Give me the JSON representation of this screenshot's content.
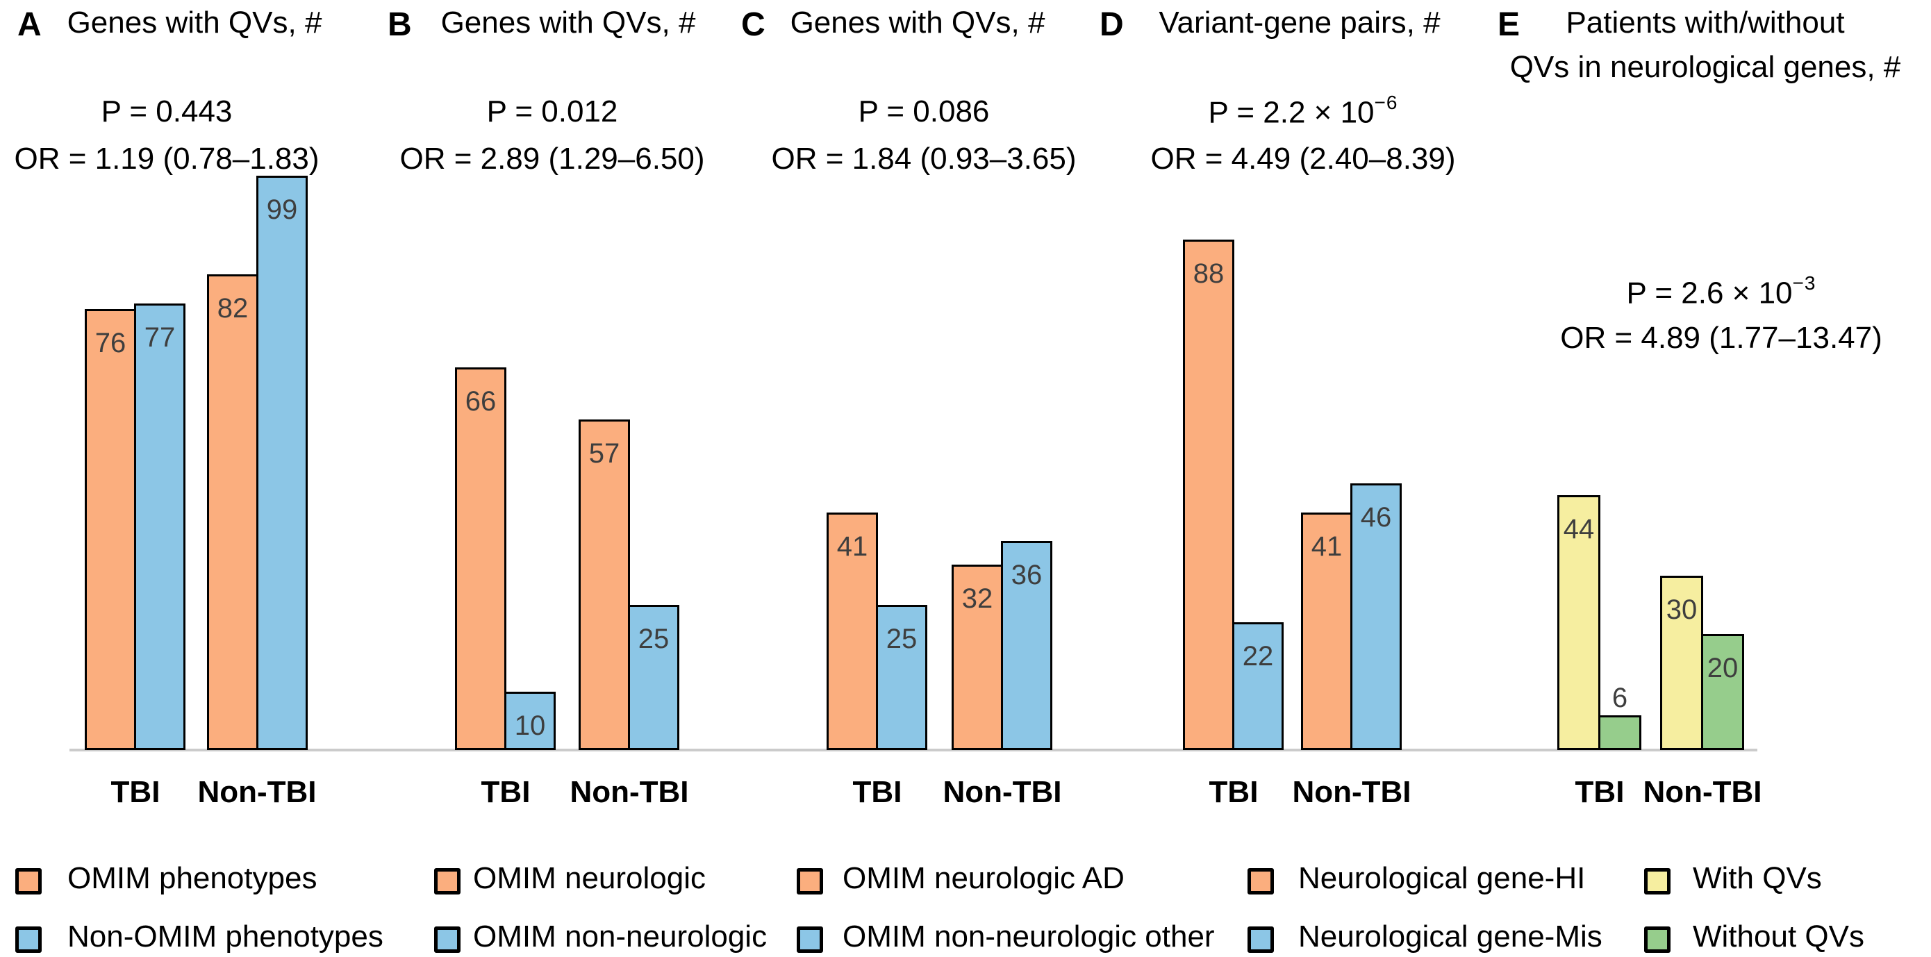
{
  "figure": {
    "background": "#FFFFFF",
    "baseline_color": "#CBCBCB",
    "bar_border_color": "#000000",
    "value_label_color": "#3E3E3E"
  },
  "colors": {
    "orange": "#FBAE7E",
    "blue": "#8CC6E6",
    "yellow": "#F6EEA0",
    "green": "#96CD8C"
  },
  "chart_data": {
    "type": "bar",
    "categories": [
      "TBI",
      "Non-TBI"
    ],
    "grid": "off",
    "value_axis_shown": false,
    "legend_position": "bottom",
    "panels": [
      {
        "label": "A",
        "title_lines": [
          "Genes with QVs, #"
        ],
        "p_base": "P = 0.443",
        "p_exp": "",
        "or_text": "OR = 1.19 (0.78–1.83)",
        "series": [
          {
            "name": "OMIM phenotypes",
            "color_key": "orange",
            "values": [
              76,
              82
            ]
          },
          {
            "name": "Non-OMIM phenotypes",
            "color_key": "blue",
            "values": [
              77,
              99
            ]
          }
        ]
      },
      {
        "label": "B",
        "title_lines": [
          "Genes with QVs, #"
        ],
        "p_base": "P = 0.012",
        "p_exp": "",
        "or_text": "OR = 2.89 (1.29–6.50)",
        "series": [
          {
            "name": "OMIM neurologic",
            "color_key": "orange",
            "values": [
              66,
              57
            ]
          },
          {
            "name": "OMIM non-neurologic",
            "color_key": "blue",
            "values": [
              10,
              25
            ]
          }
        ]
      },
      {
        "label": "C",
        "title_lines": [
          "Genes with QVs, #"
        ],
        "p_base": "P = 0.086",
        "p_exp": "",
        "or_text": "OR = 1.84 (0.93–3.65)",
        "series": [
          {
            "name": "OMIM neurologic AD",
            "color_key": "orange",
            "values": [
              41,
              32
            ]
          },
          {
            "name": "OMIM non-neurologic other",
            "color_key": "blue",
            "values": [
              25,
              36
            ]
          }
        ]
      },
      {
        "label": "D",
        "title_lines": [
          "Variant-gene pairs, #"
        ],
        "p_base": "P = 2.2 × 10",
        "p_exp": "−6",
        "or_text": "OR = 4.49 (2.40–8.39)",
        "series": [
          {
            "name": "Neurological gene-HI",
            "color_key": "orange",
            "values": [
              88,
              41
            ]
          },
          {
            "name": "Neurological gene-Mis",
            "color_key": "blue",
            "values": [
              22,
              46
            ]
          }
        ]
      },
      {
        "label": "E",
        "title_lines": [
          "Patients with/without",
          "QVs in neurological genes, #"
        ],
        "p_base": "P = 2.6 × 10",
        "p_exp": "−3",
        "or_text": "OR = 4.89 (1.77–13.47)",
        "series": [
          {
            "name": "With QVs",
            "color_key": "yellow",
            "values": [
              44,
              30
            ]
          },
          {
            "name": "Without QVs",
            "color_key": "green",
            "values": [
              6,
              20
            ]
          }
        ]
      }
    ]
  },
  "legend": {
    "groups": [
      {
        "items": [
          {
            "label": "OMIM phenotypes",
            "color_key": "orange"
          },
          {
            "label": "Non-OMIM phenotypes",
            "color_key": "blue"
          }
        ]
      },
      {
        "items": [
          {
            "label": "OMIM neurologic",
            "color_key": "orange"
          },
          {
            "label": "OMIM non-neurologic",
            "color_key": "blue"
          }
        ]
      },
      {
        "items": [
          {
            "label": "OMIM neurologic AD",
            "color_key": "orange"
          },
          {
            "label": "OMIM non-neurologic other",
            "color_key": "blue"
          }
        ]
      },
      {
        "items": [
          {
            "label": "Neurological gene-HI",
            "color_key": "orange"
          },
          {
            "label": "Neurological gene-Mis",
            "color_key": "blue"
          }
        ]
      },
      {
        "items": [
          {
            "label": "With QVs",
            "color_key": "yellow"
          },
          {
            "label": "Without QVs",
            "color_key": "green"
          }
        ]
      }
    ]
  }
}
